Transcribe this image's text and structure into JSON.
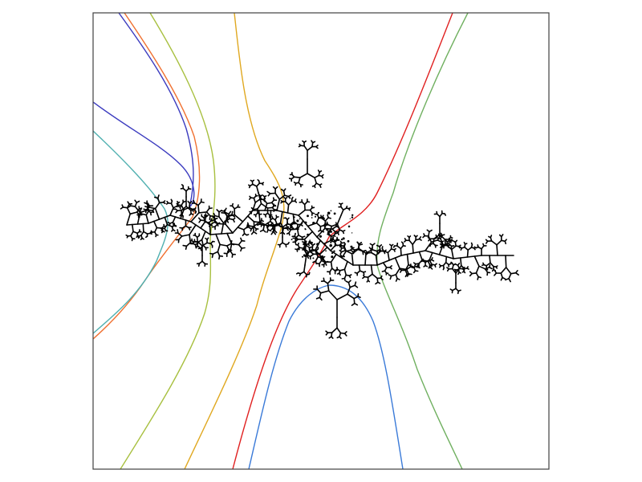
{
  "figure": {
    "kind": "julia-set-with-external-rays",
    "background_color": "#ffffff",
    "frame_color": "#404040",
    "fractal_color": "#000000",
    "rays": [
      {
        "id": "ray-navy-upper-left",
        "color": "#3b3bbf"
      },
      {
        "id": "ray-orange-upper-left",
        "color": "#f07030"
      },
      {
        "id": "ray-olive-upper-left",
        "color": "#a8c040"
      },
      {
        "id": "ray-teal-left",
        "color": "#50b0b0"
      },
      {
        "id": "ray-gold-center",
        "color": "#e0a820"
      },
      {
        "id": "ray-red-center",
        "color": "#e02020"
      },
      {
        "id": "ray-green-right",
        "color": "#70b060"
      },
      {
        "id": "ray-blue-lower",
        "color": "#3a7ad8"
      }
    ]
  }
}
